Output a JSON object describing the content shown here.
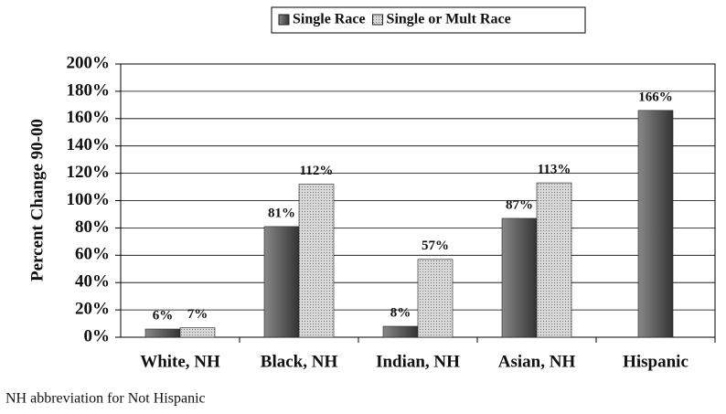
{
  "chart_data": {
    "type": "bar",
    "y_axis_label": "Percent Change 90-00",
    "footnote": "NH abbreviation for Not Hispanic",
    "categories": [
      "White, NH",
      "Black, NH",
      "Indian, NH",
      "Asian, NH",
      "Hispanic"
    ],
    "series": [
      {
        "name": "Single Race",
        "color": "#5a5a5a",
        "values": [
          6,
          81,
          8,
          87,
          166
        ],
        "value_labels": [
          "6%",
          "81%",
          "8%",
          "87%",
          "166%"
        ]
      },
      {
        "name": "Single or Mult Race",
        "color": "#c4c4c4",
        "values": [
          7,
          112,
          57,
          113,
          null
        ],
        "value_labels": [
          "7%",
          "112%",
          "57%",
          "113%",
          null
        ]
      }
    ],
    "ylim": [
      0,
      200
    ],
    "yticks": [
      {
        "value": 0,
        "label": "0%"
      },
      {
        "value": 20,
        "label": "20%"
      },
      {
        "value": 40,
        "label": "40%"
      },
      {
        "value": 60,
        "label": "60%"
      },
      {
        "value": 80,
        "label": "80%"
      },
      {
        "value": 100,
        "label": "100%"
      },
      {
        "value": 120,
        "label": "120%"
      },
      {
        "value": 140,
        "label": "140%"
      },
      {
        "value": 160,
        "label": "160%"
      },
      {
        "value": 180,
        "label": "180%"
      },
      {
        "value": 200,
        "label": "200%"
      }
    ],
    "grid": true,
    "legend": "top"
  }
}
